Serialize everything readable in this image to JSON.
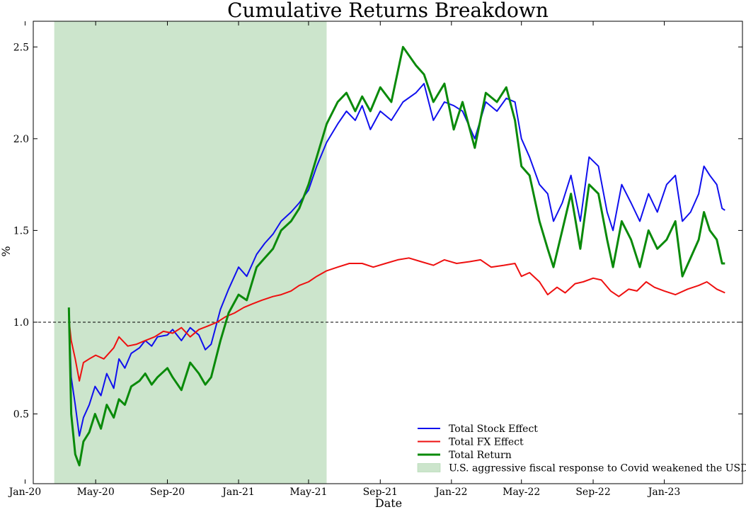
{
  "chart_data": {
    "type": "line",
    "title": "Cumulative Returns Breakdown",
    "xlabel": "Date",
    "ylabel": "%",
    "xlim": [
      "2020-01-15",
      "2023-05-15"
    ],
    "ylim": [
      0.12,
      2.64
    ],
    "x_ticks": [
      {
        "date": "2020-01-01",
        "label": "Jan-20"
      },
      {
        "date": "2020-05-01",
        "label": "May-20"
      },
      {
        "date": "2020-09-01",
        "label": "Sep-20"
      },
      {
        "date": "2021-01-01",
        "label": "Jan-21"
      },
      {
        "date": "2021-05-01",
        "label": "May-21"
      },
      {
        "date": "2021-09-01",
        "label": "Sep-21"
      },
      {
        "date": "2022-01-01",
        "label": "Jan-22"
      },
      {
        "date": "2022-05-01",
        "label": "May-22"
      },
      {
        "date": "2022-09-01",
        "label": "Sep-22"
      },
      {
        "date": "2023-01-01",
        "label": "Jan-23"
      }
    ],
    "y_ticks": [
      {
        "value": 0.5,
        "label": "0.5"
      },
      {
        "value": 1.0,
        "label": "1.0"
      },
      {
        "value": 1.5,
        "label": "1.5"
      },
      {
        "value": 2.0,
        "label": "2.0"
      },
      {
        "value": 2.5,
        "label": "2.5"
      }
    ],
    "reference_line": {
      "y": 1.0,
      "style": "dashed",
      "color": "#000000"
    },
    "shaded_region": {
      "x_start": "2020-02-20",
      "x_end": "2021-06-01",
      "color": "#cce5cc",
      "label": "U.S. aggressive fiscal response to Covid weakened the USD"
    },
    "legend_position": "lower-right",
    "series": [
      {
        "name": "Total Stock Effect",
        "color": "#1010ee",
        "x": [
          "2020-03-16",
          "2020-03-20",
          "2020-03-27",
          "2020-04-03",
          "2020-04-10",
          "2020-04-20",
          "2020-04-30",
          "2020-05-10",
          "2020-05-20",
          "2020-06-01",
          "2020-06-10",
          "2020-06-20",
          "2020-07-01",
          "2020-07-15",
          "2020-07-25",
          "2020-08-05",
          "2020-08-15",
          "2020-09-01",
          "2020-09-10",
          "2020-09-25",
          "2020-10-10",
          "2020-10-25",
          "2020-11-05",
          "2020-11-15",
          "2020-12-01",
          "2020-12-15",
          "2021-01-01",
          "2021-01-15",
          "2021-02-01",
          "2021-02-15",
          "2021-03-01",
          "2021-03-15",
          "2021-04-01",
          "2021-04-15",
          "2021-05-01",
          "2021-05-15",
          "2021-06-01",
          "2021-06-20",
          "2021-07-05",
          "2021-07-20",
          "2021-08-01",
          "2021-08-15",
          "2021-09-01",
          "2021-09-20",
          "2021-10-10",
          "2021-11-01",
          "2021-11-15",
          "2021-12-01",
          "2021-12-20",
          "2022-01-05",
          "2022-01-20",
          "2022-02-10",
          "2022-03-01",
          "2022-03-20",
          "2022-04-05",
          "2022-04-20",
          "2022-05-01",
          "2022-05-15",
          "2022-06-01",
          "2022-06-15",
          "2022-06-25",
          "2022-07-10",
          "2022-07-25",
          "2022-08-10",
          "2022-08-25",
          "2022-09-10",
          "2022-09-25",
          "2022-10-05",
          "2022-10-20",
          "2022-11-05",
          "2022-11-20",
          "2022-12-05",
          "2022-12-20",
          "2023-01-05",
          "2023-01-20",
          "2023-02-01",
          "2023-02-15",
          "2023-03-01",
          "2023-03-10",
          "2023-03-20",
          "2023-04-01",
          "2023-04-10",
          "2023-04-15"
        ],
        "values": [
          1.05,
          0.7,
          0.55,
          0.38,
          0.48,
          0.55,
          0.65,
          0.6,
          0.72,
          0.64,
          0.8,
          0.75,
          0.83,
          0.86,
          0.9,
          0.87,
          0.92,
          0.93,
          0.96,
          0.9,
          0.97,
          0.93,
          0.85,
          0.88,
          1.07,
          1.18,
          1.3,
          1.25,
          1.37,
          1.43,
          1.48,
          1.55,
          1.6,
          1.65,
          1.72,
          1.85,
          1.98,
          2.08,
          2.15,
          2.1,
          2.18,
          2.05,
          2.15,
          2.1,
          2.2,
          2.25,
          2.3,
          2.1,
          2.2,
          2.18,
          2.15,
          2.0,
          2.2,
          2.15,
          2.22,
          2.2,
          2.0,
          1.9,
          1.75,
          1.7,
          1.55,
          1.65,
          1.8,
          1.55,
          1.9,
          1.85,
          1.6,
          1.5,
          1.75,
          1.65,
          1.55,
          1.7,
          1.6,
          1.75,
          1.8,
          1.55,
          1.6,
          1.7,
          1.85,
          1.8,
          1.75,
          1.62,
          1.61
        ]
      },
      {
        "name": "Total FX Effect",
        "color": "#ee1010",
        "x": [
          "2020-03-16",
          "2020-03-20",
          "2020-03-27",
          "2020-04-03",
          "2020-04-10",
          "2020-04-20",
          "2020-05-01",
          "2020-05-15",
          "2020-06-01",
          "2020-06-10",
          "2020-06-25",
          "2020-07-10",
          "2020-07-25",
          "2020-08-10",
          "2020-08-25",
          "2020-09-10",
          "2020-09-25",
          "2020-10-10",
          "2020-10-25",
          "2020-11-10",
          "2020-11-25",
          "2020-12-10",
          "2020-12-25",
          "2021-01-10",
          "2021-01-25",
          "2021-02-10",
          "2021-03-01",
          "2021-03-15",
          "2021-04-01",
          "2021-04-15",
          "2021-05-01",
          "2021-05-15",
          "2021-06-01",
          "2021-06-20",
          "2021-07-10",
          "2021-08-01",
          "2021-08-20",
          "2021-09-10",
          "2021-10-01",
          "2021-10-20",
          "2021-11-10",
          "2021-12-01",
          "2021-12-20",
          "2022-01-10",
          "2022-02-01",
          "2022-02-20",
          "2022-03-10",
          "2022-04-01",
          "2022-04-20",
          "2022-05-01",
          "2022-05-15",
          "2022-06-01",
          "2022-06-15",
          "2022-07-01",
          "2022-07-15",
          "2022-08-01",
          "2022-08-15",
          "2022-09-01",
          "2022-09-15",
          "2022-10-01",
          "2022-10-15",
          "2022-11-01",
          "2022-11-15",
          "2022-12-01",
          "2022-12-15",
          "2023-01-01",
          "2023-01-20",
          "2023-02-10",
          "2023-03-01",
          "2023-03-15",
          "2023-04-01",
          "2023-04-15"
        ],
        "values": [
          1.02,
          0.9,
          0.8,
          0.68,
          0.78,
          0.8,
          0.82,
          0.8,
          0.86,
          0.92,
          0.87,
          0.88,
          0.9,
          0.92,
          0.95,
          0.94,
          0.97,
          0.92,
          0.96,
          0.98,
          1.0,
          1.03,
          1.05,
          1.08,
          1.1,
          1.12,
          1.14,
          1.15,
          1.17,
          1.2,
          1.22,
          1.25,
          1.28,
          1.3,
          1.32,
          1.32,
          1.3,
          1.32,
          1.34,
          1.35,
          1.33,
          1.31,
          1.34,
          1.32,
          1.33,
          1.34,
          1.3,
          1.31,
          1.32,
          1.25,
          1.27,
          1.22,
          1.15,
          1.19,
          1.16,
          1.21,
          1.22,
          1.24,
          1.23,
          1.17,
          1.14,
          1.18,
          1.17,
          1.22,
          1.19,
          1.17,
          1.15,
          1.18,
          1.2,
          1.22,
          1.18,
          1.16
        ]
      },
      {
        "name": "Total Return",
        "color": "#0a8a0a",
        "x": [
          "2020-03-16",
          "2020-03-20",
          "2020-03-27",
          "2020-04-03",
          "2020-04-10",
          "2020-04-20",
          "2020-04-30",
          "2020-05-10",
          "2020-05-20",
          "2020-06-01",
          "2020-06-10",
          "2020-06-20",
          "2020-07-01",
          "2020-07-15",
          "2020-07-25",
          "2020-08-05",
          "2020-08-15",
          "2020-09-01",
          "2020-09-10",
          "2020-09-25",
          "2020-10-10",
          "2020-10-25",
          "2020-11-05",
          "2020-11-15",
          "2020-12-01",
          "2020-12-15",
          "2021-01-01",
          "2021-01-15",
          "2021-02-01",
          "2021-02-15",
          "2021-03-01",
          "2021-03-15",
          "2021-04-01",
          "2021-04-15",
          "2021-05-01",
          "2021-05-15",
          "2021-06-01",
          "2021-06-20",
          "2021-07-05",
          "2021-07-20",
          "2021-08-01",
          "2021-08-15",
          "2021-09-01",
          "2021-09-20",
          "2021-10-10",
          "2021-11-01",
          "2021-11-15",
          "2021-12-01",
          "2021-12-20",
          "2022-01-05",
          "2022-01-20",
          "2022-02-10",
          "2022-03-01",
          "2022-03-20",
          "2022-04-05",
          "2022-04-20",
          "2022-05-01",
          "2022-05-15",
          "2022-06-01",
          "2022-06-15",
          "2022-06-25",
          "2022-07-10",
          "2022-07-25",
          "2022-08-10",
          "2022-08-25",
          "2022-09-10",
          "2022-09-25",
          "2022-10-05",
          "2022-10-20",
          "2022-11-05",
          "2022-11-20",
          "2022-12-05",
          "2022-12-20",
          "2023-01-05",
          "2023-01-20",
          "2023-02-01",
          "2023-02-15",
          "2023-03-01",
          "2023-03-10",
          "2023-03-20",
          "2023-04-01",
          "2023-04-10",
          "2023-04-15"
        ],
        "values": [
          1.08,
          0.5,
          0.28,
          0.22,
          0.35,
          0.4,
          0.5,
          0.42,
          0.55,
          0.48,
          0.58,
          0.55,
          0.65,
          0.68,
          0.72,
          0.66,
          0.7,
          0.75,
          0.7,
          0.63,
          0.78,
          0.72,
          0.66,
          0.7,
          0.9,
          1.05,
          1.15,
          1.12,
          1.3,
          1.35,
          1.4,
          1.5,
          1.55,
          1.62,
          1.75,
          1.9,
          2.08,
          2.2,
          2.25,
          2.15,
          2.23,
          2.15,
          2.28,
          2.2,
          2.5,
          2.4,
          2.35,
          2.2,
          2.3,
          2.05,
          2.2,
          1.95,
          2.25,
          2.2,
          2.28,
          2.1,
          1.85,
          1.8,
          1.55,
          1.4,
          1.3,
          1.5,
          1.7,
          1.4,
          1.75,
          1.7,
          1.45,
          1.3,
          1.55,
          1.45,
          1.3,
          1.5,
          1.4,
          1.45,
          1.55,
          1.25,
          1.35,
          1.45,
          1.6,
          1.5,
          1.45,
          1.32,
          1.32
        ]
      }
    ]
  }
}
